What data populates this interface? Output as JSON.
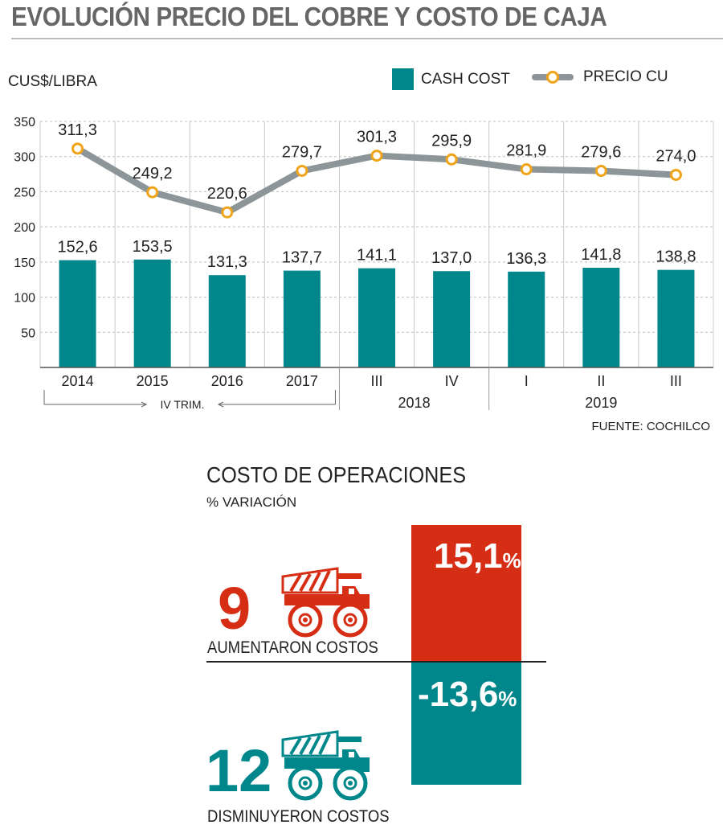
{
  "title": "EVOLUCIÓN PRECIO DEL COBRE Y COSTO DE CAJA",
  "unit_label": "CUS$/LIBRA",
  "legend": {
    "cash_cost": "CASH COST",
    "precio_cu": "PRECIO CU"
  },
  "colors": {
    "teal": "#00878b",
    "red": "#d62e14",
    "line": "#8c9598",
    "marker": "#f0a41a",
    "title": "#666666"
  },
  "chart_data": [
    {
      "type": "bar",
      "title": "EVOLUCIÓN PRECIO DEL COBRE Y COSTO DE CAJA",
      "ylabel": "CUS$/LIBRA",
      "ylim": [
        0,
        350
      ],
      "yticks": [
        50,
        100,
        150,
        200,
        250,
        300,
        350
      ],
      "grid": true,
      "legend_position": "top-right",
      "categories": [
        "2014",
        "2015",
        "2016",
        "2017",
        "III",
        "IV",
        "I",
        "II",
        "III"
      ],
      "category_groups": [
        {
          "label": "IV TRIM.",
          "from": 0,
          "to": 3
        },
        {
          "label": "2018",
          "from": 4,
          "to": 5
        },
        {
          "label": "2019",
          "from": 6,
          "to": 8
        }
      ],
      "series": [
        {
          "name": "CASH COST",
          "type": "bar",
          "values": [
            152.6,
            153.5,
            131.3,
            137.7,
            141.1,
            137.0,
            136.3,
            141.8,
            138.8
          ],
          "labels": [
            "152,6",
            "153,5",
            "131,3",
            "137,7",
            "141,1",
            "137,0",
            "136,3",
            "141,8",
            "138,8"
          ]
        },
        {
          "name": "PRECIO CU",
          "type": "line",
          "values": [
            311.3,
            249.2,
            220.6,
            279.7,
            301.3,
            295.9,
            281.9,
            279.6,
            274.0
          ],
          "labels": [
            "311,3",
            "249,2",
            "220,6",
            "279,7",
            "301,3",
            "295,9",
            "281,9",
            "279,6",
            "274,0"
          ]
        }
      ]
    },
    {
      "type": "bar",
      "title": "COSTO DE OPERACIONES",
      "subtitle": "% VARIACIÓN",
      "categories": [
        "AUMENTARON COSTOS",
        "DISMINUYERON COSTOS"
      ],
      "values": [
        15.1,
        -13.6
      ]
    }
  ],
  "source": "FUENTE: COCHILCO",
  "operations": {
    "title": "COSTO DE OPERACIONES",
    "subtitle": "% VARIACIÓN",
    "increase": {
      "value": "15,1",
      "pct": "%",
      "count": "9",
      "caption": "AUMENTARON COSTOS",
      "icon": "mining-truck-icon"
    },
    "decrease": {
      "value": "-13,6",
      "pct": "%",
      "count": "12",
      "caption": "DISMINUYERON COSTOS",
      "icon": "mining-truck-icon"
    }
  }
}
